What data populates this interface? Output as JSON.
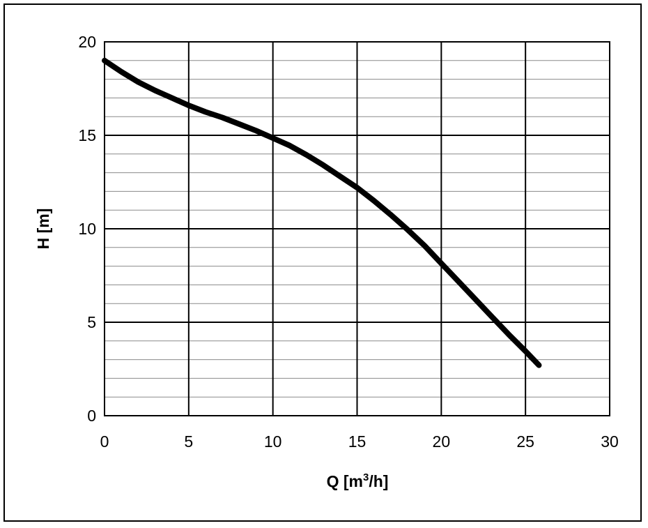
{
  "chart_data": {
    "type": "line",
    "title": "",
    "xlabel": "Q [m",
    "xlabel_sup": "3",
    "xlabel_end": "/h]",
    "ylabel": "H [m]",
    "xlim": [
      0,
      30
    ],
    "ylim": [
      0,
      20
    ],
    "x_ticks": [
      0,
      5,
      10,
      15,
      20,
      25,
      30
    ],
    "y_ticks": [
      0,
      5,
      10,
      15,
      20
    ],
    "y_minor_step": 1,
    "grid": true,
    "legend": "none",
    "series": [
      {
        "color": "#000000",
        "x": [
          0,
          1,
          2,
          3,
          4,
          5,
          6,
          7,
          8,
          9,
          10,
          11,
          12,
          13,
          14,
          15,
          16,
          17,
          18,
          19,
          20,
          21,
          22,
          23,
          24,
          25,
          25.8
        ],
        "y": [
          19.0,
          18.4,
          17.85,
          17.4,
          17.0,
          16.6,
          16.25,
          15.95,
          15.6,
          15.25,
          14.85,
          14.45,
          13.95,
          13.4,
          12.8,
          12.2,
          11.5,
          10.75,
          9.95,
          9.1,
          8.15,
          7.2,
          6.25,
          5.3,
          4.35,
          3.45,
          2.7
        ]
      }
    ]
  }
}
